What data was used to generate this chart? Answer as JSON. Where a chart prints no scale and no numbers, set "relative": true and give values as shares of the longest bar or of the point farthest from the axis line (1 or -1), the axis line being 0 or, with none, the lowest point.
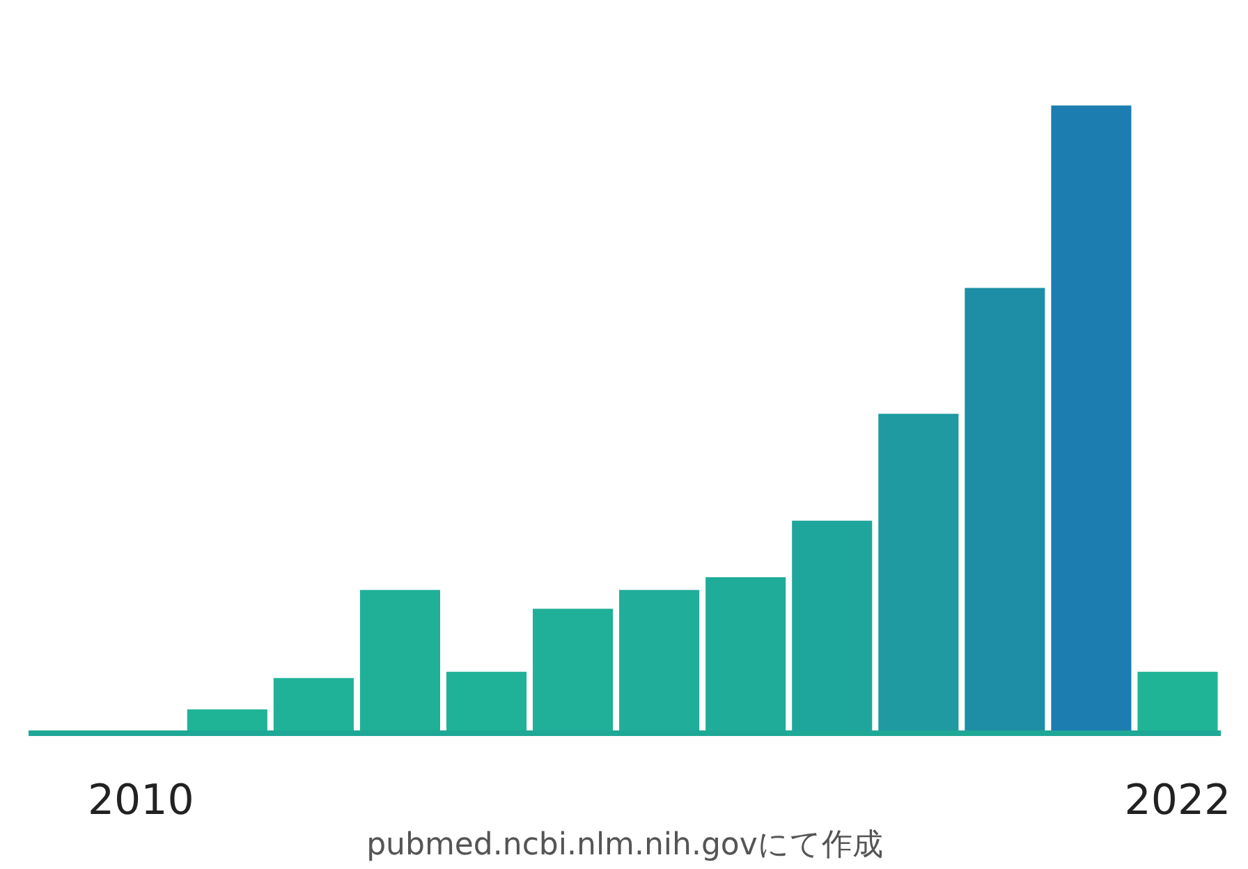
{
  "chart_data": {
    "type": "bar",
    "relative": true,
    "categories": [
      "2010",
      null,
      null,
      null,
      null,
      null,
      null,
      null,
      null,
      null,
      null,
      null,
      "2022"
    ],
    "values": [
      null,
      0.04,
      0.09,
      0.23,
      0.1,
      0.2,
      0.23,
      0.25,
      0.34,
      0.51,
      0.71,
      1,
      0.1
    ],
    "colors": [
      "#22b496",
      "#20b496",
      "#20b298",
      "#20b097",
      "#20b298",
      "#20af98",
      "#20ad99",
      "#1fac99",
      "#1fa69c",
      "#1e9aa0",
      "#1d8ea5",
      "#1c7db0",
      "#20b496"
    ],
    "grid": false,
    "annotations": [
      "pubmed.ncbi.nlm.nih.govにて作成"
    ]
  }
}
